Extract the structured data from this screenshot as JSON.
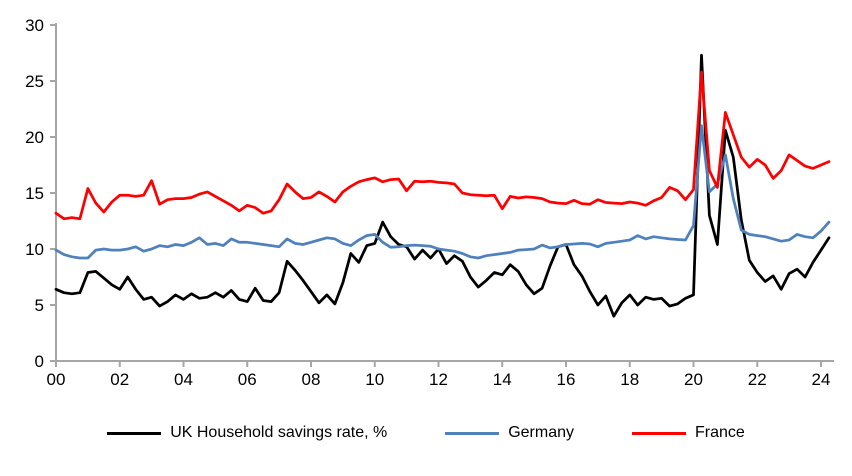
{
  "colors": {
    "background": "#FFFFFF",
    "axis": "#A6A6A6",
    "uk": "#000000",
    "germany": "#4F81BD",
    "france": "#FF0000"
  },
  "chart_data": {
    "type": "line",
    "title": "",
    "xlabel": "",
    "ylabel": "",
    "grid": false,
    "legend_position": "bottom",
    "ylim": [
      0,
      30
    ],
    "y_ticks": [
      0,
      5,
      10,
      15,
      20,
      25,
      30
    ],
    "y_tick_labels": [
      "0",
      "5",
      "10",
      "15",
      "20",
      "25",
      "30"
    ],
    "x_tick_labels": [
      "00",
      "02",
      "04",
      "06",
      "08",
      "10",
      "12",
      "14",
      "16",
      "18",
      "20",
      "22",
      "24"
    ],
    "x_start_year": 2000,
    "x_step_years": 0.25,
    "frequency": "quarterly",
    "series": [
      {
        "name": "UK Household savings rate, %",
        "color": "#000000",
        "values": [
          6.4,
          6.1,
          6.0,
          6.1,
          7.9,
          8.0,
          7.4,
          6.8,
          6.4,
          7.5,
          6.4,
          5.5,
          5.7,
          4.9,
          5.3,
          5.9,
          5.5,
          6.0,
          5.6,
          5.7,
          6.1,
          5.7,
          6.3,
          5.5,
          5.3,
          6.5,
          5.4,
          5.3,
          6.1,
          8.9,
          8.1,
          7.2,
          6.2,
          5.2,
          5.9,
          5.1,
          7.0,
          9.6,
          8.8,
          10.3,
          10.5,
          12.4,
          11.1,
          10.4,
          10.2,
          9.1,
          9.9,
          9.2,
          10.0,
          8.7,
          9.4,
          8.9,
          7.5,
          6.6,
          7.2,
          7.9,
          7.7,
          8.6,
          8.0,
          6.8,
          6.0,
          6.5,
          8.5,
          10.2,
          10.4,
          8.6,
          7.6,
          6.2,
          5.0,
          5.8,
          4.0,
          5.2,
          5.9,
          5.0,
          5.7,
          5.5,
          5.6,
          4.9,
          5.1,
          5.6,
          5.9,
          27.3,
          13.0,
          10.4,
          20.6,
          18.2,
          12.6,
          9.0,
          7.9,
          7.1,
          7.6,
          6.4,
          7.8,
          8.2,
          7.5,
          8.8,
          9.9,
          11.0
        ]
      },
      {
        "name": "Germany",
        "color": "#4F81BD",
        "values": [
          9.9,
          9.5,
          9.3,
          9.2,
          9.2,
          9.9,
          10.0,
          9.9,
          9.9,
          10.0,
          10.2,
          9.8,
          10.0,
          10.3,
          10.2,
          10.4,
          10.3,
          10.6,
          11.0,
          10.4,
          10.5,
          10.3,
          10.9,
          10.6,
          10.6,
          10.5,
          10.4,
          10.3,
          10.2,
          10.9,
          10.5,
          10.4,
          10.6,
          10.8,
          11.0,
          10.9,
          10.5,
          10.3,
          10.8,
          11.2,
          11.3,
          10.6,
          10.15,
          10.2,
          10.3,
          10.35,
          10.3,
          10.25,
          10.0,
          9.9,
          9.8,
          9.6,
          9.3,
          9.2,
          9.4,
          9.5,
          9.6,
          9.7,
          9.9,
          9.95,
          10.0,
          10.35,
          10.1,
          10.2,
          10.4,
          10.45,
          10.5,
          10.45,
          10.2,
          10.5,
          10.6,
          10.7,
          10.8,
          11.2,
          10.9,
          11.1,
          11.0,
          10.9,
          10.85,
          10.8,
          12.1,
          21.0,
          15.1,
          15.8,
          18.4,
          14.5,
          11.7,
          11.3,
          11.2,
          11.1,
          10.9,
          10.7,
          10.8,
          11.3,
          11.1,
          11.0,
          11.6,
          12.4
        ]
      },
      {
        "name": "France",
        "color": "#FF0000",
        "values": [
          13.2,
          12.7,
          12.8,
          12.7,
          15.4,
          14.1,
          13.3,
          14.2,
          14.8,
          14.8,
          14.7,
          14.8,
          16.1,
          14.0,
          14.4,
          14.5,
          14.5,
          14.6,
          14.9,
          15.1,
          14.7,
          14.3,
          13.9,
          13.4,
          13.9,
          13.7,
          13.2,
          13.4,
          14.4,
          15.8,
          15.1,
          14.5,
          14.6,
          15.1,
          14.7,
          14.2,
          15.1,
          15.6,
          16.0,
          16.2,
          16.35,
          16.0,
          16.2,
          16.25,
          15.2,
          16.05,
          16.0,
          16.05,
          15.95,
          15.9,
          15.8,
          15.0,
          14.85,
          14.8,
          14.75,
          14.8,
          13.6,
          14.7,
          14.55,
          14.65,
          14.6,
          14.5,
          14.2,
          14.1,
          14.05,
          14.35,
          14.05,
          14.0,
          14.4,
          14.15,
          14.1,
          14.05,
          14.2,
          14.1,
          13.9,
          14.3,
          14.6,
          15.5,
          15.2,
          14.4,
          15.3,
          25.8,
          17.0,
          15.5,
          22.2,
          20.2,
          18.2,
          17.3,
          18.0,
          17.5,
          16.3,
          17.0,
          18.4,
          17.9,
          17.4,
          17.2,
          17.5,
          17.8
        ]
      }
    ]
  },
  "legend": {
    "items": [
      {
        "label": "UK Household savings rate, %"
      },
      {
        "label": "Germany"
      },
      {
        "label": "France"
      }
    ]
  }
}
